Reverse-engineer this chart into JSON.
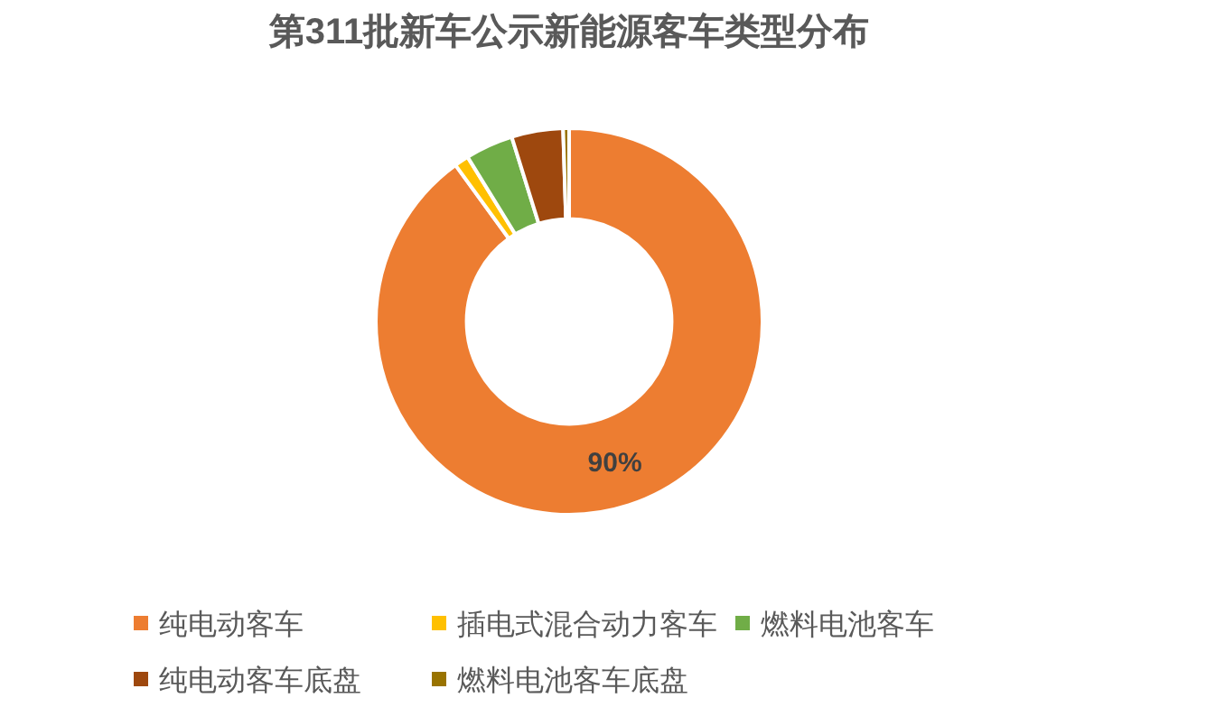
{
  "chart_data": {
    "type": "donut",
    "title": "第311批新车公示新能源客车类型分布",
    "categories": [
      "纯电动客车",
      "插电式混合动力客车",
      "燃料电池客车",
      "纯电动客车底盘",
      "燃料电池客车底盘"
    ],
    "values": [
      90,
      1.2,
      4,
      4.3,
      0.5
    ],
    "colors": [
      "#ed7d31",
      "#ffc000",
      "#70ad47",
      "#9e480e",
      "#997300"
    ],
    "value_labels": [
      "90%",
      null,
      null,
      null,
      null
    ],
    "legend": "bottom"
  }
}
